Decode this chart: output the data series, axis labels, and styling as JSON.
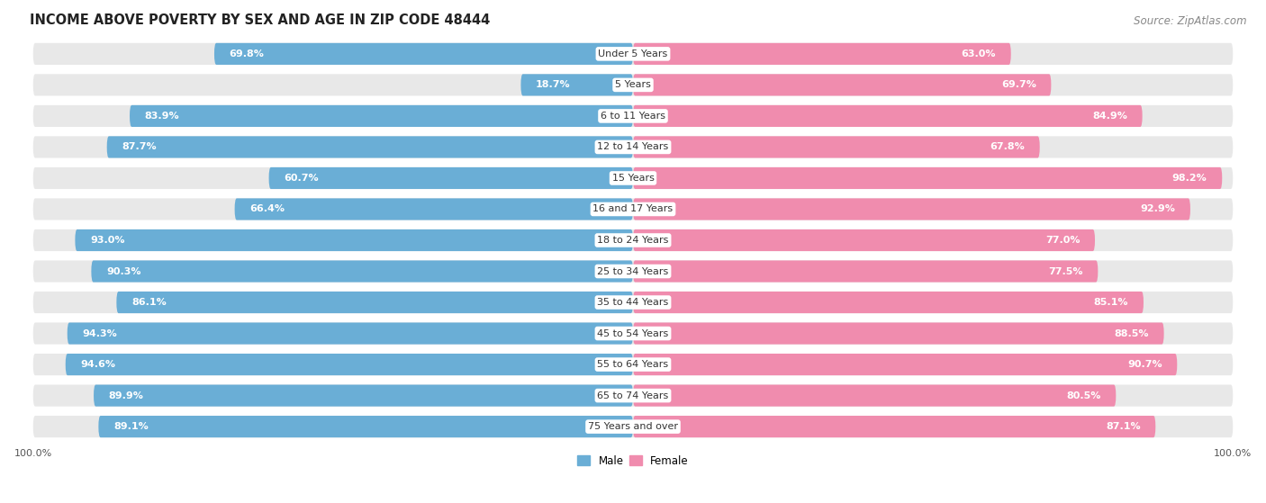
{
  "title": "INCOME ABOVE POVERTY BY SEX AND AGE IN ZIP CODE 48444",
  "source": "Source: ZipAtlas.com",
  "categories": [
    "Under 5 Years",
    "5 Years",
    "6 to 11 Years",
    "12 to 14 Years",
    "15 Years",
    "16 and 17 Years",
    "18 to 24 Years",
    "25 to 34 Years",
    "35 to 44 Years",
    "45 to 54 Years",
    "55 to 64 Years",
    "65 to 74 Years",
    "75 Years and over"
  ],
  "male_values": [
    69.8,
    18.7,
    83.9,
    87.7,
    60.7,
    66.4,
    93.0,
    90.3,
    86.1,
    94.3,
    94.6,
    89.9,
    89.1
  ],
  "female_values": [
    63.0,
    69.7,
    84.9,
    67.8,
    98.2,
    92.9,
    77.0,
    77.5,
    85.1,
    88.5,
    90.7,
    80.5,
    87.1
  ],
  "male_color": "#6aaed6",
  "female_color": "#f08cae",
  "row_bg_color": "#e8e8e8",
  "separator_color": "#ffffff",
  "title_fontsize": 10.5,
  "source_fontsize": 8.5,
  "label_fontsize": 8.0,
  "value_fontsize": 8.0,
  "axis_fontsize": 8.0,
  "max_value": 100.0
}
